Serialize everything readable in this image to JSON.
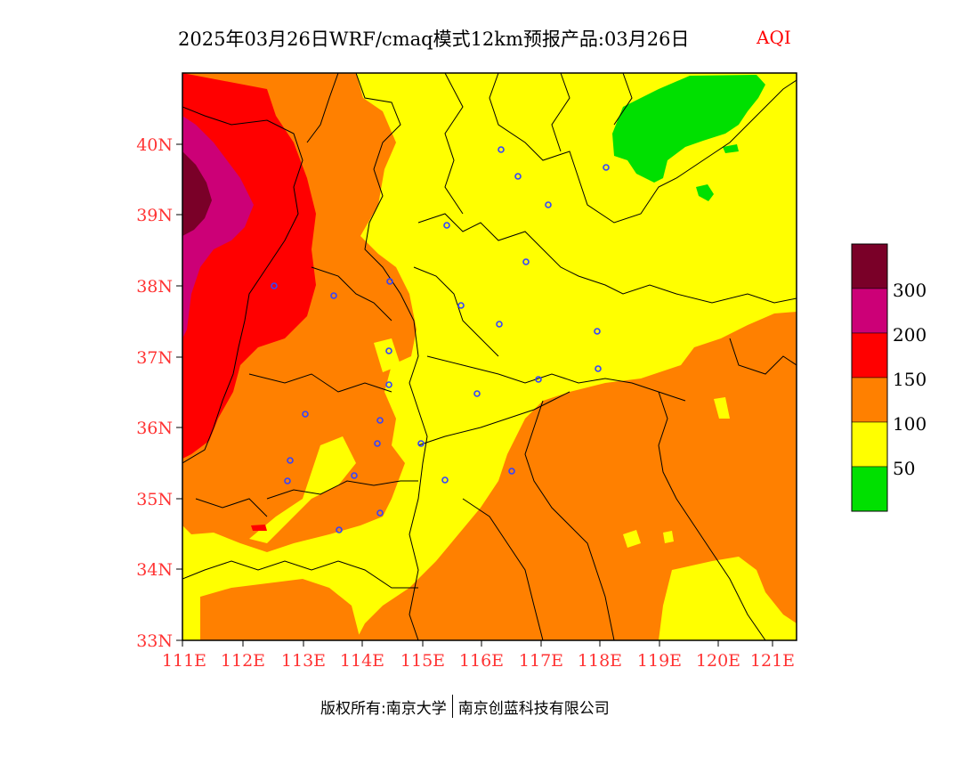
{
  "header": {
    "title": "2025年03月26日WRF/cmaq模式12km预报产品:03月26日",
    "variable": "AQI"
  },
  "map": {
    "variable": "AQI",
    "lon_ticks": [
      "111E",
      "112E",
      "113E",
      "114E",
      "115E",
      "116E",
      "117E",
      "118E",
      "119E",
      "120E",
      "121E"
    ],
    "lat_ticks": [
      "33N",
      "34N",
      "35N",
      "36N",
      "37N",
      "38N",
      "39N",
      "40N"
    ],
    "extent": {
      "lon": [
        111,
        121.4
      ],
      "lat": [
        33,
        41
      ]
    },
    "colors": {
      "good": "#00e000",
      "moderate": "#ffff00",
      "unhealthy_sensitive": "#ff8000",
      "unhealthy": "#ff0000",
      "very_unhealthy": "#cc0077",
      "hazardous": "#7a0028",
      "boundary": "#000000",
      "city_marker": "#3344ff"
    },
    "city_markers_count": 29
  },
  "legend": {
    "labels": [
      "300",
      "200",
      "150",
      "100",
      "50"
    ],
    "colors": [
      "#7a0028",
      "#cc0077",
      "#ff0000",
      "#ff8000",
      "#ffff00",
      "#00e000"
    ]
  },
  "footer": {
    "left": "版权所有:南京大学",
    "right": "南京创蓝科技有限公司"
  }
}
